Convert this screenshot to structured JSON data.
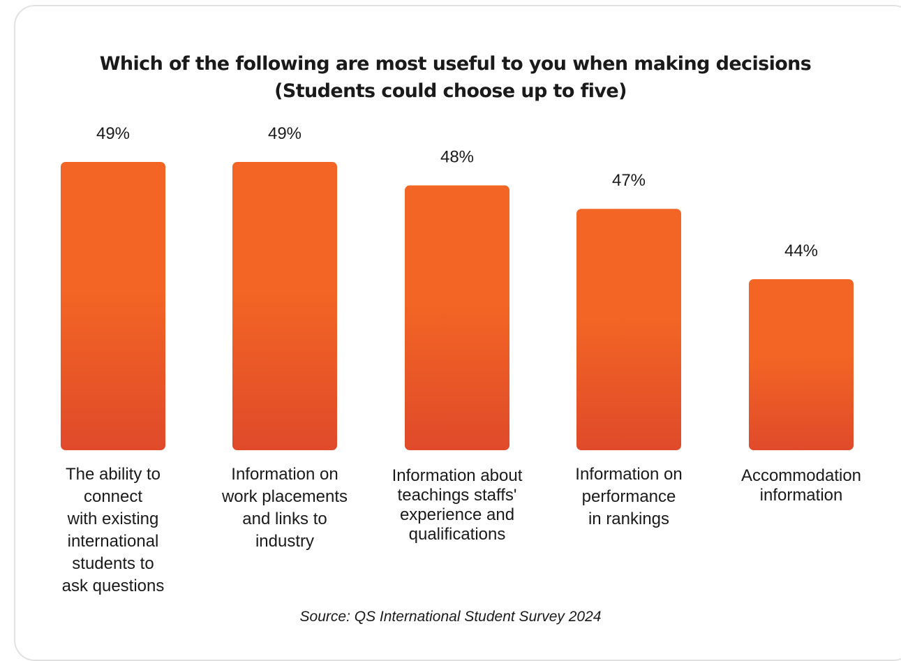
{
  "colors": {
    "bar_top": "#f26524",
    "bar_bottom": "#e04a2a",
    "border": "#e2e2e2",
    "text": "#1a1a1a"
  },
  "chart_data": {
    "type": "bar",
    "title": "Which of the following are most useful to you when making decisions",
    "subtitle": "(Students could choose up to five)",
    "categories": [
      "The ability to connect with existing international students to ask questions",
      "Information on work placements and links to industry",
      "Information about teachings staffs' experience and qualifications",
      "Information on performance in rankings",
      "Accommodation information"
    ],
    "category_label_lines": [
      [
        "The ability to",
        "connect",
        "with existing",
        "international",
        "students to",
        "ask questions"
      ],
      [
        "Information on",
        "work placements",
        "and links to",
        "industry"
      ],
      [
        "Information about",
        "teachings staffs'",
        "experience and",
        "qualifications"
      ],
      [
        "Information on",
        "performance",
        "in rankings"
      ],
      [
        "Accommodation",
        "information"
      ]
    ],
    "values": [
      49,
      49,
      48,
      47,
      44
    ],
    "value_labels": [
      "49%",
      "49%",
      "48%",
      "47%",
      "44%"
    ],
    "unit": "%",
    "grid": false,
    "legend": "none",
    "source": "Source: QS International Student Survey 2024"
  }
}
